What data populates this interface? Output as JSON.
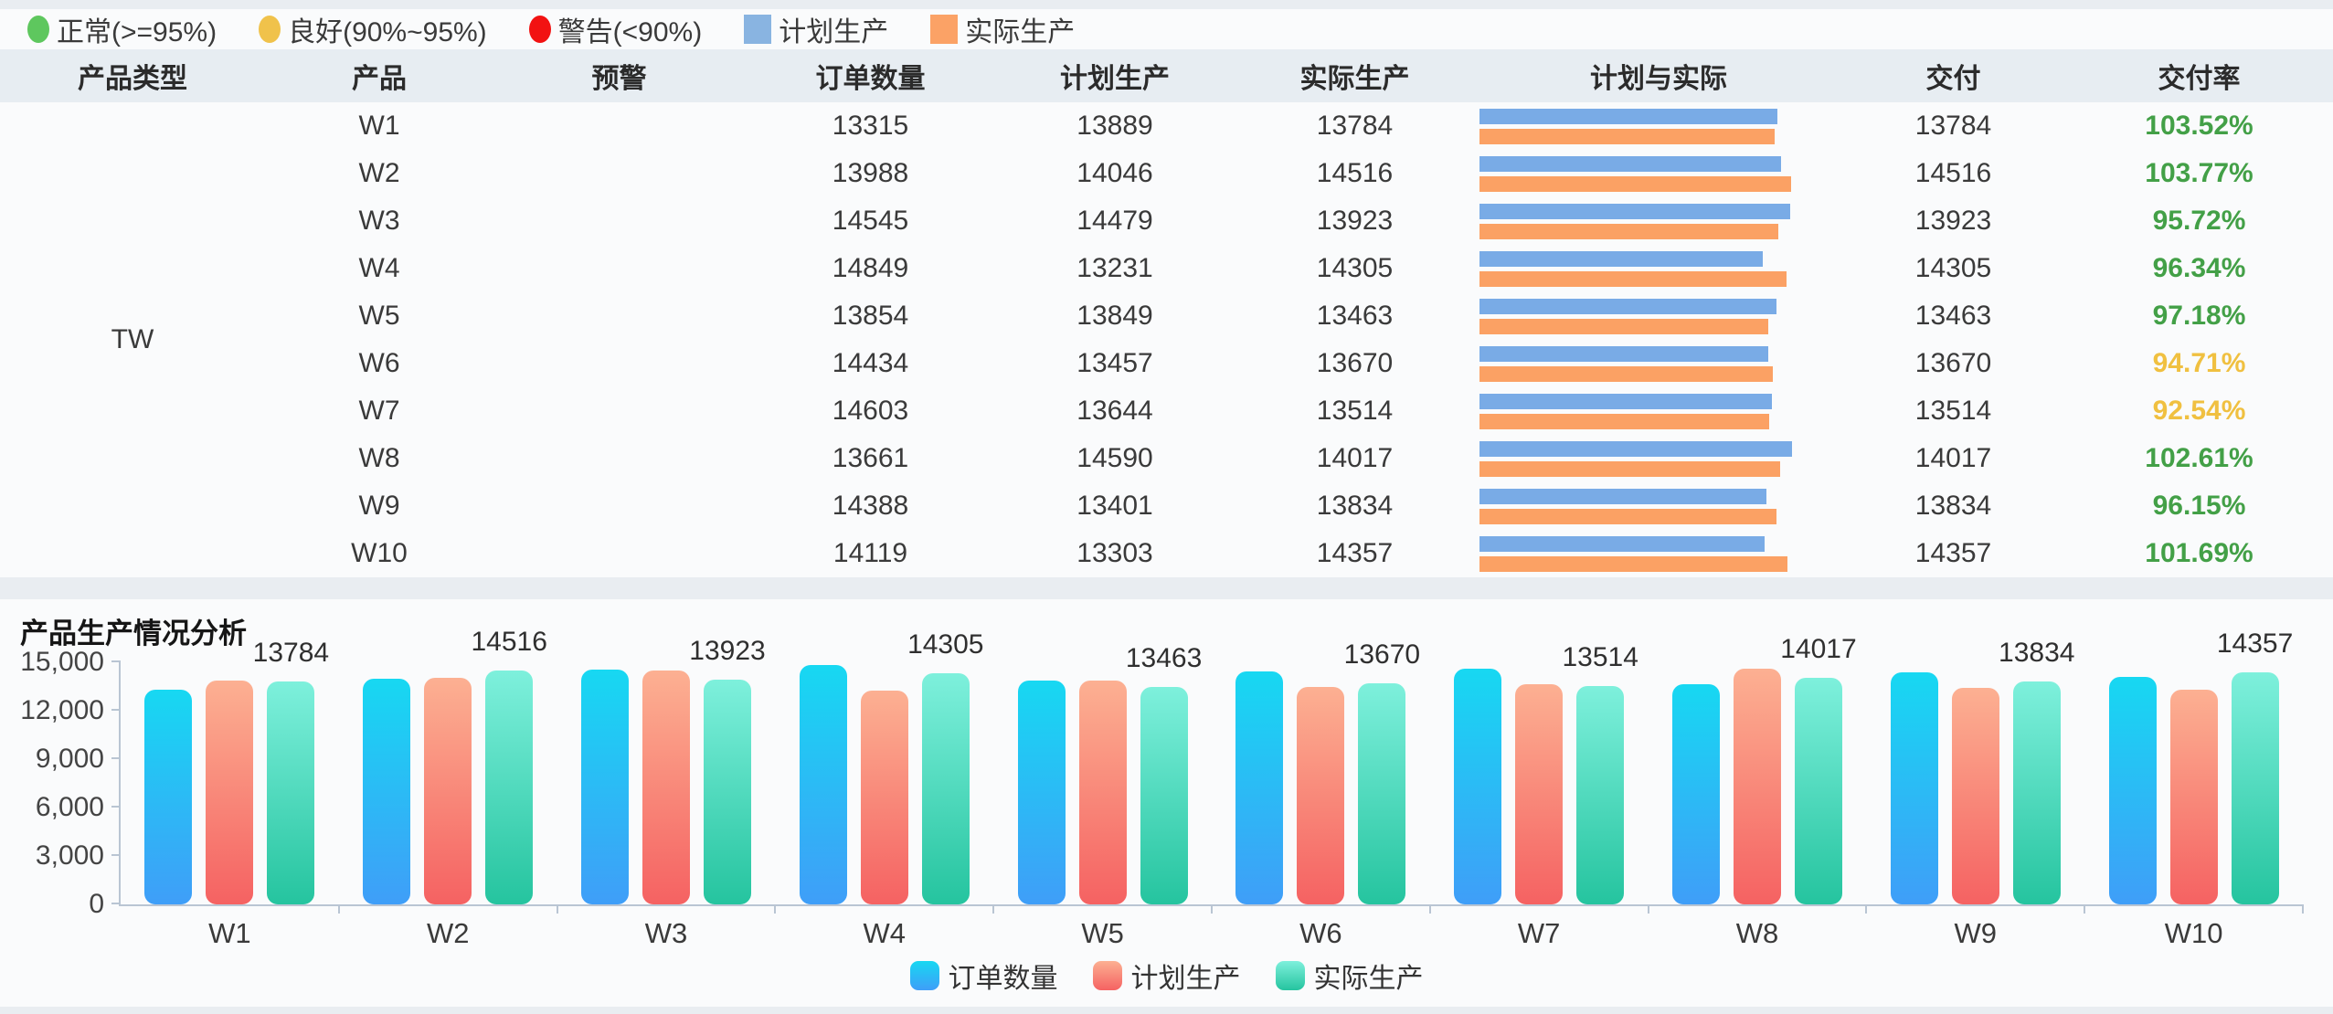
{
  "top_legend": {
    "items": [
      {
        "label": "正常(>=95%)",
        "shape": "dot",
        "color": "#5ec75e"
      },
      {
        "label": "良好(90%~95%)",
        "shape": "dot",
        "color": "#f0c24b"
      },
      {
        "label": "警告(<90%)",
        "shape": "dot",
        "color": "#f21212"
      },
      {
        "label": "计划生产",
        "shape": "square",
        "color": "#89b4e1"
      },
      {
        "label": "实际生产",
        "shape": "square",
        "color": "#fba266"
      }
    ]
  },
  "table": {
    "headers": [
      "产品类型",
      "产品",
      "预警",
      "订单数量",
      "计划生产",
      "实际生产",
      "计划与实际",
      "交付",
      "交付率"
    ],
    "product_type": "TW",
    "status_colors": {
      "normal": "#5ec75e",
      "good": "#f0c24b",
      "warning": "#f21212"
    },
    "rate_colors": {
      "normal": "#43a047",
      "good": "#f0c040"
    },
    "minibar_colors": {
      "planned": "#79abe6",
      "actual": "#fba164"
    },
    "minibar_scale_max": 15000,
    "rows": [
      {
        "product": "W1",
        "status_level": "normal",
        "order": "13315",
        "planned": "13889",
        "actual": "13784",
        "delivery": "13784",
        "rate": "103.52%",
        "rate_level": "normal"
      },
      {
        "product": "W2",
        "status_level": "normal",
        "order": "13988",
        "planned": "14046",
        "actual": "14516",
        "delivery": "14516",
        "rate": "103.77%",
        "rate_level": "normal"
      },
      {
        "product": "W3",
        "status_level": "normal",
        "order": "14545",
        "planned": "14479",
        "actual": "13923",
        "delivery": "13923",
        "rate": "95.72%",
        "rate_level": "normal"
      },
      {
        "product": "W4",
        "status_level": "normal",
        "order": "14849",
        "planned": "13231",
        "actual": "14305",
        "delivery": "14305",
        "rate": "96.34%",
        "rate_level": "normal"
      },
      {
        "product": "W5",
        "status_level": "normal",
        "order": "13854",
        "planned": "13849",
        "actual": "13463",
        "delivery": "13463",
        "rate": "97.18%",
        "rate_level": "normal"
      },
      {
        "product": "W6",
        "status_level": "good",
        "order": "14434",
        "planned": "13457",
        "actual": "13670",
        "delivery": "13670",
        "rate": "94.71%",
        "rate_level": "good"
      },
      {
        "product": "W7",
        "status_level": "good",
        "order": "14603",
        "planned": "13644",
        "actual": "13514",
        "delivery": "13514",
        "rate": "92.54%",
        "rate_level": "good"
      },
      {
        "product": "W8",
        "status_level": "normal",
        "order": "13661",
        "planned": "14590",
        "actual": "14017",
        "delivery": "14017",
        "rate": "102.61%",
        "rate_level": "normal"
      },
      {
        "product": "W9",
        "status_level": "normal",
        "order": "14388",
        "planned": "13401",
        "actual": "13834",
        "delivery": "13834",
        "rate": "96.15%",
        "rate_level": "normal"
      },
      {
        "product": "W10",
        "status_level": "normal",
        "order": "14119",
        "planned": "13303",
        "actual": "14357",
        "delivery": "14357",
        "rate": "101.69%",
        "rate_level": "normal"
      }
    ]
  },
  "chart_data": {
    "type": "bar",
    "title": "产品生产情况分析",
    "categories": [
      "W1",
      "W2",
      "W3",
      "W4",
      "W5",
      "W6",
      "W7",
      "W8",
      "W9",
      "W10"
    ],
    "series": [
      {
        "name": "订单数量",
        "values": [
          13315,
          13988,
          14545,
          14849,
          13854,
          14434,
          14603,
          13661,
          14388,
          14119
        ],
        "gradient": [
          "#17d8f2",
          "#3f9ef8"
        ]
      },
      {
        "name": "计划生产",
        "values": [
          13889,
          14046,
          14479,
          13231,
          13849,
          13457,
          13644,
          14590,
          13401,
          13303
        ],
        "gradient": [
          "#fcb092",
          "#f56262"
        ]
      },
      {
        "name": "实际生产",
        "values": [
          13784,
          14516,
          13923,
          14305,
          13463,
          13670,
          13514,
          14017,
          13834,
          14357
        ],
        "gradient": [
          "#7ef0dc",
          "#25c49f"
        ]
      }
    ],
    "bar_labels": [
      "13784",
      "14516",
      "13923",
      "14305",
      "13463",
      "13670",
      "13514",
      "14017",
      "13834",
      "14357"
    ],
    "bar_labels_series": "实际生产",
    "xlabel": "",
    "ylabel": "",
    "ylim": [
      0,
      15000
    ],
    "ytick_labels": [
      "0",
      "3,000",
      "6,000",
      "9,000",
      "12,000",
      "15,000"
    ],
    "grid": false,
    "legend_position": "bottom"
  }
}
